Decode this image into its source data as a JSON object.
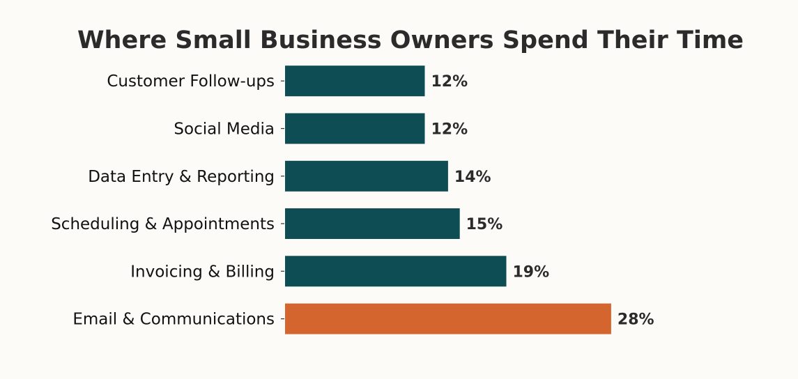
{
  "chart_data": {
    "type": "bar",
    "orientation": "horizontal",
    "title": "Where Small Business Owners Spend Their Time",
    "xlabel": "",
    "ylabel": "",
    "categories": [
      "Email & Communications",
      "Invoicing & Billing",
      "Scheduling & Appointments",
      "Data Entry & Reporting",
      "Social Media",
      "Customer Follow-ups"
    ],
    "values": [
      28,
      19,
      15,
      14,
      12,
      12
    ],
    "value_labels": [
      "28%",
      "19%",
      "15%",
      "14%",
      "12%",
      "12%"
    ],
    "unit": "%",
    "xlim": [
      0,
      35
    ],
    "grid": false,
    "colors": {
      "highlight": "#d4652f",
      "default": "#0e4d54",
      "background": "#fcfbf8",
      "text": "#2b2b2b"
    },
    "highlight_index": 0
  }
}
